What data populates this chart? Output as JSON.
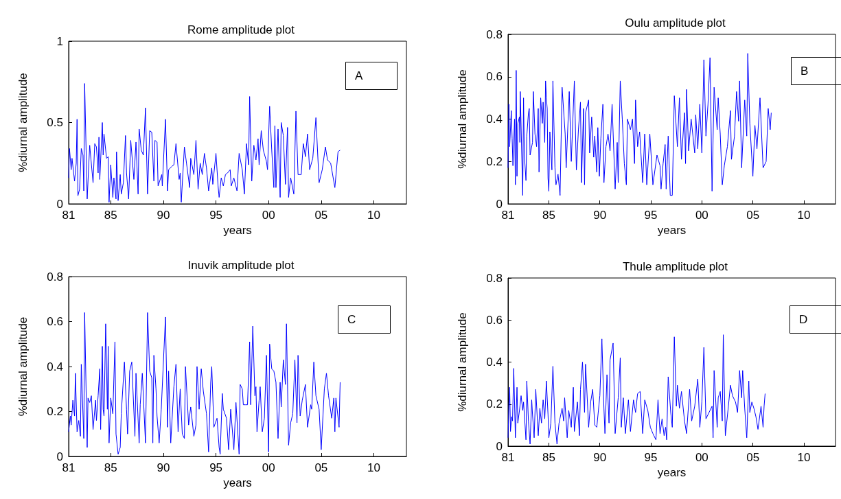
{
  "chart_data": [
    {
      "type": "line",
      "title": "Rome amplitude plot",
      "xlabel": "years",
      "ylabel": "%diurnal amplitude",
      "annotations": [
        "A"
      ],
      "marker": "none",
      "grid": false,
      "xlim": [
        1981,
        2013.1
      ],
      "xticks": [
        {
          "value": 1981,
          "label": "81"
        },
        {
          "value": 1985,
          "label": "85"
        },
        {
          "value": 1990,
          "label": "90"
        },
        {
          "value": 1995,
          "label": "95"
        },
        {
          "value": 2000,
          "label": "00"
        },
        {
          "value": 2005,
          "label": "05"
        },
        {
          "value": 2010,
          "label": "10"
        }
      ],
      "ylim": [
        0,
        1
      ],
      "yticks": [
        0,
        0.5,
        1
      ],
      "series": [
        {
          "color": "#0000ff",
          "x": [
            1981.0,
            1981.08,
            1981.24,
            1981.32,
            1981.56,
            1981.72,
            1981.8,
            1981.88,
            1982.04,
            1982.2,
            1982.36,
            1982.44,
            1982.52,
            1982.76,
            1983.0,
            1983.32,
            1983.48,
            1983.64,
            1983.8,
            1983.88,
            1983.96,
            1984.2,
            1984.28,
            1984.36,
            1984.6,
            1984.76,
            1984.84,
            1985.0,
            1985.2,
            1985.3,
            1985.5,
            1985.55,
            1985.7,
            1985.9,
            1986.0,
            1986.2,
            1986.4,
            1986.5,
            1986.7,
            1986.9,
            1987.2,
            1987.4,
            1987.6,
            1987.7,
            1987.9,
            1988.1,
            1988.3,
            1988.5,
            1988.7,
            1988.9,
            1989.1,
            1989.2,
            1989.4,
            1989.5,
            1989.85,
            1989.9,
            1990.2,
            1990.4,
            1990.5,
            1990.8,
            1991.0,
            1991.2,
            1991.5,
            1991.6,
            1991.7,
            1992.0,
            1992.2,
            1992.5,
            1992.6,
            1992.9,
            1993.1,
            1993.3,
            1993.5,
            1993.7,
            1993.9,
            1994.1,
            1994.3,
            1994.6,
            1994.7,
            1995.0,
            1995.2,
            1995.3,
            1995.5,
            1995.7,
            1995.9,
            1996.1,
            1996.35,
            1996.45,
            1996.7,
            1997.0,
            1997.2,
            1997.5,
            1997.7,
            1997.9,
            1998.1,
            1998.2,
            1998.4,
            1998.6,
            1998.8,
            1999.0,
            1999.1,
            1999.3,
            1999.5,
            1999.8,
            1999.9,
            2000.1,
            2000.3,
            2000.5,
            2000.6,
            2000.7,
            2000.9,
            2001.1,
            2001.2,
            2001.4,
            2001.6,
            2001.8,
            2001.9,
            2002.1,
            2002.4,
            2002.6,
            2002.8,
            2003.1,
            2003.3,
            2003.5,
            2003.7,
            2003.9,
            2004.2,
            2004.5,
            2004.8,
            2005.1,
            2005.4,
            2005.6,
            2005.9,
            2006.3,
            2006.6,
            2006.8
          ],
          "values": [
            0.16,
            0.34,
            0.21,
            0.28,
            0.14,
            0.25,
            0.52,
            0.05,
            0.09,
            0.34,
            0.3,
            0.08,
            0.74,
            0.03,
            0.36,
            0.13,
            0.37,
            0.35,
            0.19,
            0.41,
            0.15,
            0.5,
            0.3,
            0.43,
            0.28,
            0.29,
            0.01,
            0.24,
            0.04,
            0.16,
            0.03,
            0.32,
            0.02,
            0.18,
            0.06,
            0.13,
            0.42,
            0.19,
            0.03,
            0.39,
            0.15,
            0.38,
            0.06,
            0.46,
            0.33,
            0.3,
            0.59,
            0.06,
            0.45,
            0.44,
            0.14,
            0.39,
            0.38,
            0.11,
            0.18,
            0.11,
            0.52,
            0.08,
            0.21,
            0.23,
            0.24,
            0.37,
            0.15,
            0.19,
            0.01,
            0.35,
            0.25,
            0.1,
            0.28,
            0.18,
            0.39,
            0.09,
            0.25,
            0.18,
            0.31,
            0.22,
            0.08,
            0.22,
            0.12,
            0.31,
            0.11,
            0.04,
            0.16,
            0.11,
            0.18,
            0.19,
            0.21,
            0.11,
            0.16,
            0.08,
            0.31,
            0.21,
            0.06,
            0.37,
            0.24,
            0.66,
            0.14,
            0.36,
            0.27,
            0.4,
            0.24,
            0.45,
            0.33,
            0.26,
            0.21,
            0.6,
            0.33,
            0.1,
            0.48,
            0.1,
            0.46,
            0.04,
            0.5,
            0.42,
            0.12,
            0.47,
            0.04,
            0.16,
            0.06,
            0.57,
            0.18,
            0.18,
            0.37,
            0.29,
            0.43,
            0.21,
            0.28,
            0.53,
            0.13,
            0.21,
            0.35,
            0.27,
            0.25,
            0.1,
            0.32,
            0.33
          ]
        }
      ]
    },
    {
      "type": "line",
      "title": "Oulu amplitude plot",
      "xlabel": "years",
      "ylabel": "%diurnal amplitude",
      "annotations": [
        "B"
      ],
      "marker": "none",
      "grid": false,
      "xlim": [
        1981,
        2013.1
      ],
      "xticks": [
        {
          "value": 1981,
          "label": "81"
        },
        {
          "value": 1985,
          "label": "85"
        },
        {
          "value": 1990,
          "label": "90"
        },
        {
          "value": 1995,
          "label": "95"
        },
        {
          "value": 2000,
          "label": "00"
        },
        {
          "value": 2005,
          "label": "05"
        },
        {
          "value": 2010,
          "label": "10"
        }
      ],
      "ylim": [
        0,
        0.8
      ],
      "yticks": [
        0,
        0.2,
        0.4,
        0.6,
        0.8
      ],
      "series": [
        {
          "color": "#0000ff",
          "x": [
            1981.0,
            1981.08,
            1981.16,
            1981.32,
            1981.4,
            1981.48,
            1981.64,
            1981.72,
            1981.8,
            1981.88,
            1981.96,
            1982.12,
            1982.16,
            1982.2,
            1982.44,
            1982.52,
            1982.6,
            1982.76,
            1982.84,
            1983.0,
            1983.08,
            1983.16,
            1983.4,
            1983.48,
            1983.64,
            1983.8,
            1983.96,
            1984.04,
            1984.2,
            1984.36,
            1984.44,
            1984.6,
            1984.68,
            1984.76,
            1984.84,
            1984.92,
            1985.0,
            1985.1,
            1985.3,
            1985.4,
            1985.6,
            1985.7,
            1985.9,
            1986.1,
            1986.3,
            1986.6,
            1986.7,
            1987.0,
            1987.2,
            1987.5,
            1987.7,
            1987.9,
            1988.1,
            1988.2,
            1988.4,
            1988.5,
            1988.6,
            1988.9,
            1989.0,
            1989.2,
            1989.4,
            1989.5,
            1989.7,
            1989.8,
            1989.95,
            1990.1,
            1990.3,
            1990.4,
            1990.6,
            1990.8,
            1991.0,
            1991.2,
            1991.5,
            1991.7,
            1991.8,
            1992.0,
            1992.2,
            1992.4,
            1992.6,
            1992.7,
            1993.0,
            1993.2,
            1993.4,
            1993.5,
            1993.7,
            1993.9,
            1994.2,
            1994.4,
            1994.6,
            1994.9,
            1995.2,
            1995.4,
            1995.6,
            1995.9,
            1996.0,
            1996.2,
            1996.4,
            1996.5,
            1996.7,
            1996.9,
            1997.1,
            1997.3,
            1997.6,
            1997.8,
            1998.0,
            1998.3,
            1998.4,
            1998.5,
            1998.7,
            1998.95,
            1999.3,
            1999.4,
            1999.6,
            1999.8,
            2000.0,
            2000.2,
            2000.4,
            2000.6,
            2000.8,
            2001.0,
            2001.2,
            2001.5,
            2001.6,
            2001.8,
            2002.0,
            2002.2,
            2002.5,
            2002.8,
            2002.9,
            2003.2,
            2003.4,
            2003.6,
            2003.7,
            2003.9,
            2004.2,
            2004.4,
            2004.5,
            2004.7,
            2005.0,
            2005.2,
            2005.4,
            2005.7,
            2006.0,
            2006.3,
            2006.5,
            2006.7,
            2006.8
          ],
          "values": [
            0.17,
            0.47,
            0.27,
            0.44,
            0.31,
            0.18,
            0.4,
            0.09,
            0.63,
            0.13,
            0.38,
            0.41,
            0.29,
            0.53,
            0.04,
            0.5,
            0.23,
            0.11,
            0.32,
            0.43,
            0.45,
            0.23,
            0.29,
            0.53,
            0.33,
            0.27,
            0.45,
            0.15,
            0.5,
            0.38,
            0.48,
            0.29,
            0.58,
            0.5,
            0.45,
            0.12,
            0.06,
            0.34,
            0.16,
            0.58,
            0.17,
            0.09,
            0.14,
            0.04,
            0.55,
            0.33,
            0.17,
            0.53,
            0.2,
            0.58,
            0.16,
            0.35,
            0.48,
            0.1,
            0.45,
            0.09,
            0.43,
            0.49,
            0.24,
            0.41,
            0.22,
            0.32,
            0.15,
            0.36,
            0.13,
            0.31,
            0.47,
            0.1,
            0.27,
            0.33,
            0.25,
            0.47,
            0.07,
            0.29,
            0.1,
            0.58,
            0.4,
            0.19,
            0.09,
            0.4,
            0.35,
            0.4,
            0.19,
            0.49,
            0.27,
            0.34,
            0.1,
            0.33,
            0.09,
            0.33,
            0.09,
            0.16,
            0.23,
            0.18,
            0.07,
            0.19,
            0.28,
            0.07,
            0.32,
            0.04,
            0.04,
            0.51,
            0.27,
            0.5,
            0.21,
            0.43,
            0.19,
            0.54,
            0.25,
            0.4,
            0.24,
            0.42,
            0.26,
            0.47,
            0.24,
            0.68,
            0.32,
            0.47,
            0.69,
            0.06,
            0.55,
            0.35,
            0.5,
            0.33,
            0.09,
            0.18,
            0.27,
            0.44,
            0.21,
            0.32,
            0.53,
            0.39,
            0.58,
            0.17,
            0.49,
            0.32,
            0.71,
            0.38,
            0.13,
            0.37,
            0.26,
            0.5,
            0.17,
            0.2,
            0.45,
            0.35,
            0.43
          ]
        }
      ]
    },
    {
      "type": "line",
      "title": "Inuvik amplitude plot",
      "xlabel": "years",
      "ylabel": "%diurnal amplitude",
      "annotations": [
        "C"
      ],
      "marker": "none",
      "grid": false,
      "xlim": [
        1981,
        2013.1
      ],
      "xticks": [
        {
          "value": 1981,
          "label": "81"
        },
        {
          "value": 1985,
          "label": "85"
        },
        {
          "value": 1990,
          "label": "90"
        },
        {
          "value": 1995,
          "label": "95"
        },
        {
          "value": 2000,
          "label": "00"
        },
        {
          "value": 2005,
          "label": "05"
        },
        {
          "value": 2010,
          "label": "10"
        }
      ],
      "ylim": [
        0,
        0.8
      ],
      "yticks": [
        0,
        0.2,
        0.4,
        0.6,
        0.8
      ],
      "series": [
        {
          "color": "#0000ff",
          "x": [
            1981.0,
            1981.16,
            1981.24,
            1981.4,
            1981.56,
            1981.64,
            1981.8,
            1981.96,
            1982.12,
            1982.2,
            1982.44,
            1982.52,
            1982.76,
            1982.84,
            1983.0,
            1983.16,
            1983.32,
            1983.56,
            1983.64,
            1983.8,
            1983.96,
            1984.04,
            1984.2,
            1984.28,
            1984.36,
            1984.52,
            1984.68,
            1984.76,
            1984.84,
            1985.0,
            1985.2,
            1985.4,
            1985.5,
            1985.7,
            1985.9,
            1986.0,
            1986.3,
            1986.5,
            1986.6,
            1986.8,
            1987.0,
            1987.3,
            1987.4,
            1987.7,
            1987.8,
            1988.0,
            1988.3,
            1988.5,
            1988.7,
            1988.9,
            1989.0,
            1989.1,
            1989.3,
            1989.4,
            1989.6,
            1989.8,
            1990.2,
            1990.4,
            1990.5,
            1990.7,
            1991.0,
            1991.2,
            1991.4,
            1991.6,
            1991.8,
            1992.0,
            1992.1,
            1992.4,
            1992.6,
            1992.9,
            1993.1,
            1993.2,
            1993.4,
            1993.6,
            1993.8,
            1994.1,
            1994.3,
            1994.5,
            1994.6,
            1994.8,
            1995.1,
            1995.3,
            1995.4,
            1995.6,
            1995.7,
            1996.0,
            1996.2,
            1996.4,
            1996.7,
            1996.9,
            1997.2,
            1997.3,
            1997.5,
            1997.6,
            1997.8,
            1998.0,
            1998.2,
            1998.3,
            1998.5,
            1998.7,
            1998.8,
            1998.9,
            1999.1,
            1999.2,
            1999.4,
            1999.6,
            1999.8,
            2000.0,
            2000.1,
            2000.3,
            2000.5,
            2000.7,
            2000.9,
            2001.1,
            2001.2,
            2001.4,
            2001.6,
            2001.7,
            2001.9,
            2002.1,
            2002.3,
            2002.5,
            2002.7,
            2002.8,
            2003.0,
            2003.2,
            2003.5,
            2003.7,
            2004.0,
            2004.1,
            2004.3,
            2004.5,
            2004.8,
            2005.0,
            2005.3,
            2005.5,
            2005.7,
            2006.0,
            2006.2,
            2006.3,
            2006.4,
            2006.7,
            2006.8
          ],
          "values": [
            0.11,
            0.18,
            0.14,
            0.25,
            0.18,
            0.37,
            0.11,
            0.16,
            0.09,
            0.41,
            0.08,
            0.64,
            0.04,
            0.26,
            0.24,
            0.27,
            0.12,
            0.25,
            0.16,
            0.27,
            0.39,
            0.12,
            0.49,
            0.21,
            0.18,
            0.59,
            0.21,
            0.49,
            0.06,
            0.26,
            0.19,
            0.51,
            0.1,
            0.01,
            0.04,
            0.19,
            0.42,
            0.21,
            0.1,
            0.38,
            0.42,
            0.09,
            0.37,
            0.06,
            0.23,
            0.37,
            0.06,
            0.64,
            0.38,
            0.35,
            0.06,
            0.45,
            0.3,
            0.18,
            0.06,
            0.21,
            0.62,
            0.13,
            0.38,
            0.06,
            0.31,
            0.41,
            0.11,
            0.3,
            0.1,
            0.08,
            0.4,
            0.14,
            0.22,
            0.09,
            0.14,
            0.4,
            0.21,
            0.39,
            0.29,
            0.19,
            0.02,
            0.33,
            0.4,
            0.13,
            0.17,
            0.04,
            0.01,
            0.28,
            0.21,
            0.17,
            0.03,
            0.21,
            0.03,
            0.24,
            0.01,
            0.32,
            0.3,
            0.23,
            0.23,
            0.23,
            0.51,
            0.23,
            0.58,
            0.27,
            0.31,
            0.11,
            0.25,
            0.31,
            0.11,
            0.17,
            0.45,
            0.02,
            0.5,
            0.39,
            0.38,
            0.33,
            0.08,
            0.33,
            0.22,
            0.43,
            0.32,
            0.59,
            0.05,
            0.15,
            0.19,
            0.43,
            0.15,
            0.45,
            0.18,
            0.25,
            0.32,
            0.13,
            0.23,
            0.21,
            0.42,
            0.27,
            0.21,
            0.03,
            0.3,
            0.37,
            0.27,
            0.17,
            0.26,
            0.11,
            0.26,
            0.13,
            0.33
          ]
        }
      ]
    },
    {
      "type": "line",
      "title": "Thule amplitude plot",
      "xlabel": "years",
      "ylabel": "%diurnal amplitude",
      "annotations": [
        "D"
      ],
      "marker": "none",
      "grid": false,
      "xlim": [
        1981,
        2013.1
      ],
      "xticks": [
        {
          "value": 1981,
          "label": "81"
        },
        {
          "value": 1985,
          "label": "85"
        },
        {
          "value": 1990,
          "label": "90"
        },
        {
          "value": 1995,
          "label": "95"
        },
        {
          "value": 2000,
          "label": "00"
        },
        {
          "value": 2005,
          "label": "05"
        },
        {
          "value": 2010,
          "label": "10"
        }
      ],
      "ylim": [
        0,
        0.8
      ],
      "yticks": [
        0,
        0.2,
        0.4,
        0.6,
        0.8
      ],
      "series": [
        {
          "color": "#0000ff",
          "x": [
            1981.0,
            1981.08,
            1981.16,
            1981.24,
            1981.36,
            1981.44,
            1981.56,
            1981.72,
            1981.88,
            1981.96,
            1982.12,
            1982.28,
            1982.44,
            1982.52,
            1982.76,
            1982.84,
            1983.0,
            1983.16,
            1983.32,
            1983.4,
            1983.56,
            1983.72,
            1983.88,
            1983.96,
            1984.12,
            1984.28,
            1984.44,
            1984.6,
            1984.76,
            1984.92,
            1985.0,
            1985.2,
            1985.4,
            1985.6,
            1985.8,
            1986.0,
            1986.3,
            1986.45,
            1986.55,
            1986.8,
            1986.95,
            1987.2,
            1987.4,
            1987.5,
            1987.8,
            1988.0,
            1988.1,
            1988.3,
            1988.5,
            1988.6,
            1988.9,
            1989.1,
            1989.3,
            1989.5,
            1989.7,
            1990.0,
            1990.2,
            1990.4,
            1990.5,
            1990.7,
            1990.9,
            1991.0,
            1991.3,
            1991.5,
            1991.8,
            1992.0,
            1992.1,
            1992.3,
            1992.5,
            1992.8,
            1993.0,
            1993.3,
            1993.5,
            1993.7,
            1993.95,
            1994.2,
            1994.4,
            1994.7,
            1994.95,
            1995.2,
            1995.5,
            1995.7,
            1995.9,
            1996.1,
            1996.3,
            1996.45,
            1996.55,
            1996.7,
            1996.95,
            1997.1,
            1997.3,
            1997.5,
            1997.6,
            1997.8,
            1998.0,
            1998.3,
            1998.5,
            1998.8,
            1999.0,
            1999.3,
            1999.6,
            1999.8,
            2000.0,
            2000.2,
            2000.4,
            2000.6,
            2000.8,
            2001.0,
            2001.1,
            2001.2,
            2001.5,
            2001.6,
            2001.8,
            2002.0,
            2002.1,
            2002.3,
            2002.6,
            2002.8,
            2003.0,
            2003.3,
            2003.5,
            2003.7,
            2003.9,
            2004.0,
            2004.2,
            2004.4,
            2004.6,
            2004.7,
            2004.9,
            2005.1,
            2005.3,
            2005.5,
            2005.8,
            2006.0,
            2006.1,
            2006.2
          ],
          "values": [
            0.04,
            0.19,
            0.28,
            0.07,
            0.14,
            0.12,
            0.37,
            0.04,
            0.28,
            0.11,
            0.17,
            0.24,
            0.17,
            0.21,
            0.03,
            0.31,
            0.12,
            0.01,
            0.22,
            0.15,
            0.04,
            0.27,
            0.12,
            0.05,
            0.18,
            0.11,
            0.22,
            0.13,
            0.31,
            0.15,
            0.04,
            0.11,
            0.38,
            0.11,
            0.01,
            0.11,
            0.18,
            0.12,
            0.23,
            0.04,
            0.17,
            0.09,
            0.28,
            0.07,
            0.21,
            0.05,
            0.27,
            0.4,
            0.16,
            0.39,
            0.09,
            0.21,
            0.27,
            0.1,
            0.09,
            0.24,
            0.51,
            0.18,
            0.06,
            0.34,
            0.11,
            0.41,
            0.49,
            0.06,
            0.23,
            0.42,
            0.09,
            0.23,
            0.06,
            0.22,
            0.07,
            0.22,
            0.16,
            0.25,
            0.26,
            0.06,
            0.22,
            0.17,
            0.09,
            0.06,
            0.03,
            0.22,
            0.06,
            0.13,
            0.05,
            0.09,
            0.03,
            0.33,
            0.16,
            0.09,
            0.52,
            0.19,
            0.29,
            0.18,
            0.26,
            0.12,
            0.06,
            0.27,
            0.12,
            0.19,
            0.32,
            0.09,
            0.21,
            0.47,
            0.13,
            0.15,
            0.17,
            0.19,
            0.04,
            0.36,
            0.09,
            0.23,
            0.26,
            0.12,
            0.53,
            0.05,
            0.19,
            0.29,
            0.24,
            0.21,
            0.16,
            0.36,
            0.23,
            0.36,
            0.18,
            0.04,
            0.31,
            0.16,
            0.21,
            0.18,
            0.14,
            0.08,
            0.19,
            0.09,
            0.19,
            0.25
          ]
        }
      ]
    }
  ]
}
